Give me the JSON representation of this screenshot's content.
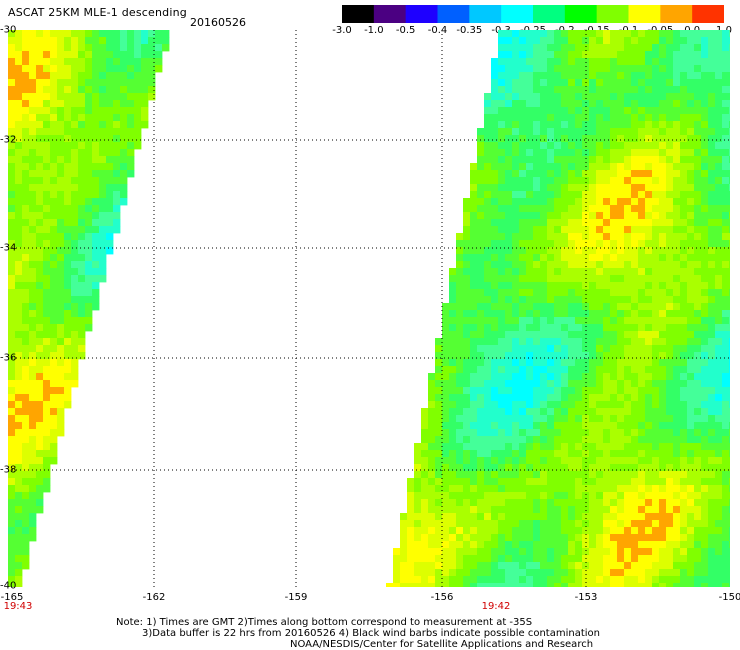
{
  "header": {
    "title": "ASCAT 25KM MLE-1 descending",
    "date": "20160526"
  },
  "colorbar": {
    "labels": [
      "-3.0",
      "-1.0",
      "-0.5",
      "-0.4",
      "-0.35",
      "-0.3",
      "-0.25",
      "-0.2",
      "-0.15",
      "-0.1",
      "-0.05",
      "0.0",
      "1.0"
    ],
    "colors": [
      "#000000",
      "#4b0082",
      "#1e00ff",
      "#0060ff",
      "#00c8ff",
      "#00ffff",
      "#00ff80",
      "#00ff00",
      "#80ff00",
      "#ffff00",
      "#ffa500",
      "#ff3300"
    ]
  },
  "map": {
    "lat_labels": [
      "-30",
      "-32",
      "-34",
      "-36",
      "-38",
      "-40"
    ],
    "lon_labels": [
      "-165",
      "-162",
      "-159",
      "-156",
      "-153",
      "-150"
    ],
    "time_labels": [
      "19:43",
      "19:42"
    ]
  },
  "footer": {
    "note_line1": "Note: 1) Times are GMT 2)Times along bottom correspond to measurement at -35S",
    "note_line2": "3)Data buffer is 22 hrs from 20160526 4) Black wind barbs indicate possible contamination",
    "note_line3": "NOAA/NESDIS/Center for Satellite Applications and Research"
  }
}
